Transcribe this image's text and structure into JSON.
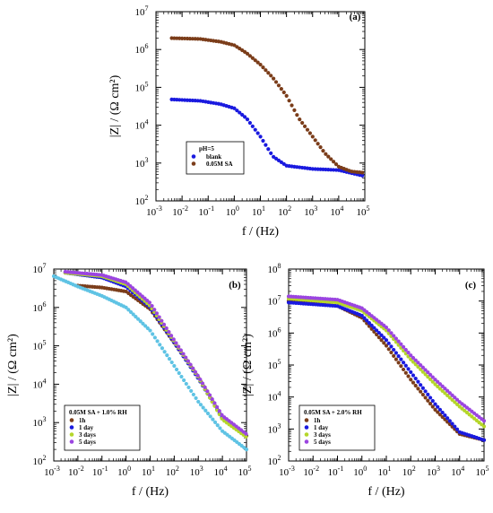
{
  "chart_data": [
    {
      "panel": "(a)",
      "type": "scatter",
      "xscale": "log",
      "yscale": "log",
      "xlim": [
        0.001,
        100000
      ],
      "ylim": [
        100,
        10000000
      ],
      "xlabel": "f / (Hz)",
      "ylabel": "|Z| / (Ω cm²)",
      "x_ticks": [
        "10-3",
        "10-2",
        "10-1",
        "100",
        "101",
        "102",
        "103",
        "104",
        "105"
      ],
      "y_ticks": [
        "102",
        "103",
        "104",
        "105",
        "106",
        "107"
      ],
      "legend": {
        "title": "pH=5",
        "position": "lower-left"
      },
      "series": [
        {
          "name": "blank",
          "color": "#1a1adf",
          "x_range": [
            0.004,
            100000
          ],
          "points": [
            [
              0.004,
              48000
            ],
            [
              0.05,
              44000
            ],
            [
              0.3,
              36000
            ],
            [
              1,
              28000
            ],
            [
              3,
              15000
            ],
            [
              10,
              5000
            ],
            [
              30,
              1500
            ],
            [
              100,
              850
            ],
            [
              1000,
              700
            ],
            [
              10000,
              650
            ],
            [
              100000,
              450
            ]
          ]
        },
        {
          "name": "0.05M SA",
          "color": "#7b3d1a",
          "x_range": [
            0.004,
            100000
          ],
          "points": [
            [
              0.004,
              2000000
            ],
            [
              0.05,
              1900000
            ],
            [
              0.3,
              1600000
            ],
            [
              1,
              1300000
            ],
            [
              3,
              800000
            ],
            [
              10,
              400000
            ],
            [
              30,
              180000
            ],
            [
              100,
              60000
            ],
            [
              300,
              15000
            ],
            [
              1000,
              5000
            ],
            [
              3000,
              1800
            ],
            [
              10000,
              800
            ],
            [
              30000,
              600
            ],
            [
              100000,
              550
            ]
          ]
        }
      ]
    },
    {
      "panel": "(b)",
      "type": "scatter",
      "xscale": "log",
      "yscale": "log",
      "xlim": [
        0.001,
        100000
      ],
      "ylim": [
        100,
        10000000
      ],
      "xlabel": "f / (Hz)",
      "ylabel": "|Z| / (Ω cm²)",
      "x_ticks": [
        "10-3",
        "10-2",
        "10-1",
        "100",
        "101",
        "102",
        "103",
        "104",
        "105"
      ],
      "y_ticks": [
        "102",
        "103",
        "104",
        "105",
        "106",
        "107"
      ],
      "legend": {
        "title": "0.05M SA + 1.0% RH",
        "position": "lower-left"
      },
      "series": [
        {
          "name": "1h",
          "color": "#7b3d1a",
          "x_range": [
            0.01,
            100000
          ],
          "points": [
            [
              0.01,
              3700000
            ],
            [
              0.1,
              3300000
            ],
            [
              1,
              2600000
            ],
            [
              10,
              900000
            ],
            [
              100,
              120000
            ],
            [
              1000,
              15000
            ],
            [
              10000,
              1300
            ],
            [
              100000,
              450
            ]
          ]
        },
        {
          "name": "1 day",
          "color": "#1a1adf",
          "x_range": [
            0.003,
            100000
          ],
          "points": [
            [
              0.003,
              8000000
            ],
            [
              0.1,
              6000000
            ],
            [
              1,
              3500000
            ],
            [
              10,
              1000000
            ],
            [
              100,
              120000
            ],
            [
              1000,
              14000
            ],
            [
              10000,
              1300
            ],
            [
              100000,
              450
            ]
          ]
        },
        {
          "name": "3 days",
          "color": "#b5d62a",
          "x_range": [
            0.003,
            100000
          ],
          "points": [
            [
              0.003,
              8000000
            ],
            [
              0.1,
              6500000
            ],
            [
              1,
              4000000
            ],
            [
              10,
              1100000
            ],
            [
              100,
              130000
            ],
            [
              1000,
              15000
            ],
            [
              10000,
              1200
            ],
            [
              100000,
              420
            ]
          ]
        },
        {
          "name": "5 days",
          "color": "#9b45e0",
          "x_range": [
            0.003,
            100000
          ],
          "points": [
            [
              0.003,
              8500000
            ],
            [
              0.1,
              7000000
            ],
            [
              1,
              4500000
            ],
            [
              10,
              1300000
            ],
            [
              100,
              140000
            ],
            [
              1000,
              16000
            ],
            [
              10000,
              1500
            ],
            [
              100000,
              500
            ]
          ]
        },
        {
          "name": "",
          "color": "#5fc3e4",
          "x_range": [
            0.001,
            100000
          ],
          "points": [
            [
              0.001,
              6500000
            ],
            [
              0.01,
              3500000
            ],
            [
              0.1,
              2000000
            ],
            [
              1,
              1000000
            ],
            [
              10,
              250000
            ],
            [
              100,
              30000
            ],
            [
              1000,
              3500
            ],
            [
              10000,
              600
            ],
            [
              100000,
              200
            ]
          ]
        }
      ]
    },
    {
      "panel": "(c)",
      "type": "scatter",
      "xscale": "log",
      "yscale": "log",
      "xlim": [
        0.001,
        100000
      ],
      "ylim": [
        100,
        100000000
      ],
      "xlabel": "f / (Hz)",
      "ylabel": "|Z| / (Ω cm²)",
      "x_ticks": [
        "10-3",
        "10-2",
        "10-1",
        "100",
        "101",
        "102",
        "103",
        "104",
        "105"
      ],
      "y_ticks": [
        "102",
        "103",
        "104",
        "105",
        "106",
        "107",
        "108"
      ],
      "legend": {
        "title": "0.05M SA + 2.0% RH",
        "position": "lower-left"
      },
      "series": [
        {
          "name": "1h",
          "color": "#7b3d1a",
          "x_range": [
            0.001,
            100000
          ],
          "points": [
            [
              0.001,
              10000000
            ],
            [
              0.1,
              7000000
            ],
            [
              1,
              3000000
            ],
            [
              10,
              400000
            ],
            [
              100,
              35000
            ],
            [
              1000,
              4000
            ],
            [
              10000,
              700
            ],
            [
              100000,
              450
            ]
          ]
        },
        {
          "name": "1 day",
          "color": "#1a1adf",
          "x_range": [
            0.001,
            100000
          ],
          "points": [
            [
              0.001,
              9000000
            ],
            [
              0.1,
              7000000
            ],
            [
              1,
              3500000
            ],
            [
              10,
              600000
            ],
            [
              100,
              60000
            ],
            [
              1000,
              6000
            ],
            [
              10000,
              800
            ],
            [
              100000,
              450
            ]
          ]
        },
        {
          "name": "3 days",
          "color": "#b5d62a",
          "x_range": [
            0.001,
            100000
          ],
          "points": [
            [
              0.001,
              12000000
            ],
            [
              0.1,
              9000000
            ],
            [
              1,
              5000000
            ],
            [
              10,
              1200000
            ],
            [
              100,
              150000
            ],
            [
              1000,
              25000
            ],
            [
              10000,
              5000
            ],
            [
              100000,
              1200
            ]
          ]
        },
        {
          "name": "5 days",
          "color": "#9b45e0",
          "x_range": [
            0.001,
            100000
          ],
          "points": [
            [
              0.001,
              14000000
            ],
            [
              0.1,
              11000000
            ],
            [
              1,
              6000000
            ],
            [
              10,
              1500000
            ],
            [
              100,
              200000
            ],
            [
              1000,
              35000
            ],
            [
              10000,
              7000
            ],
            [
              100000,
              1800
            ]
          ]
        }
      ]
    }
  ]
}
